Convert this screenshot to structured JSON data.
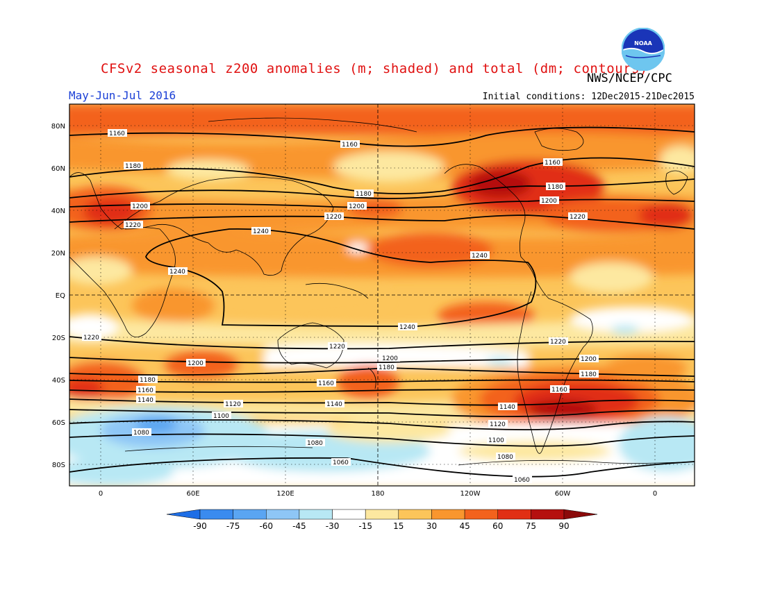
{
  "header": {
    "title": "CFSv2 seasonal z200 anomalies (m; shaded) and total (dm; contours)",
    "agency": "NWS/NCEP/CPC",
    "period": "May-Jun-Jul 2016",
    "initial_conditions": "Initial conditions: 12Dec2015-21Dec2015",
    "logo_text": "NOAA"
  },
  "axes": {
    "lat_labels": [
      "80N",
      "60N",
      "40N",
      "20N",
      "EQ",
      "20S",
      "40S",
      "60S",
      "80S"
    ],
    "lon_labels": [
      "0",
      "60E",
      "120E",
      "180",
      "120W",
      "60W",
      "0"
    ]
  },
  "colorbar": {
    "tick_labels": [
      "-90",
      "-75",
      "-60",
      "-45",
      "-30",
      "-15",
      "15",
      "30",
      "45",
      "60",
      "75",
      "90"
    ],
    "colors": [
      "#1e6ee6",
      "#3a8bef",
      "#5aa5f2",
      "#8ec6f6",
      "#b8e8f4",
      "#ffffff",
      "#fde8a0",
      "#fcc55a",
      "#f9962e",
      "#f3621d",
      "#e12f14",
      "#b5100f",
      "#8b0a0a"
    ]
  },
  "contour_labels": [
    "1160",
    "1180",
    "1200",
    "1220",
    "1240",
    "1140",
    "1120",
    "1100",
    "1080",
    "1060"
  ]
}
